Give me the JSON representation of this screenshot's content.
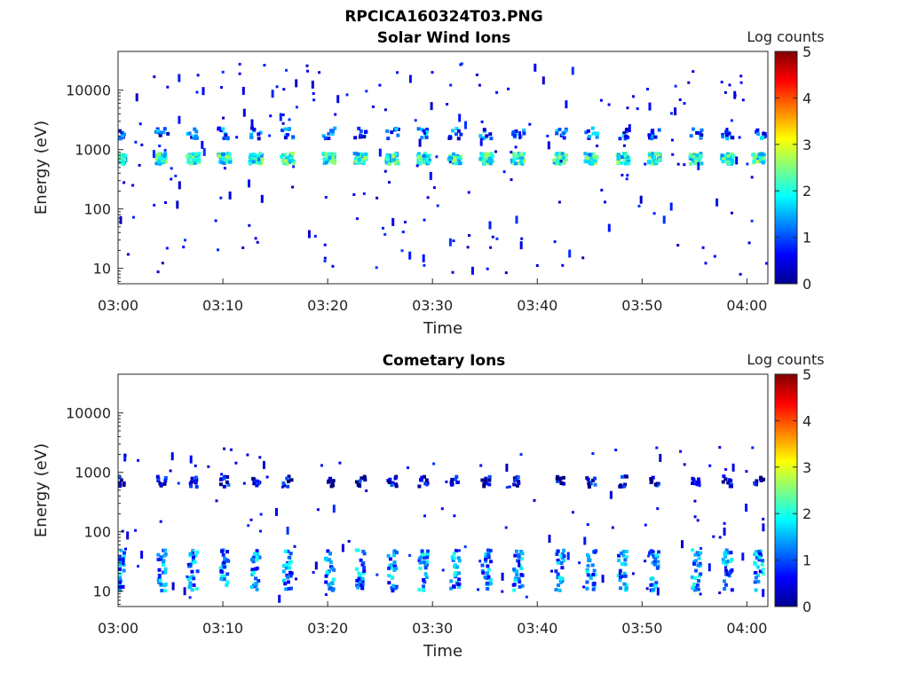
{
  "figure_title": "RPCICA160324T03.PNG",
  "colorbar": {
    "label": "Log counts",
    "ticks": [
      "0",
      "1",
      "2",
      "3",
      "4",
      "5"
    ],
    "range": [
      0,
      5
    ],
    "colormap": "jet"
  },
  "chart_data": [
    {
      "type": "heatmap",
      "title": "Solar Wind Ions",
      "xlabel": "Time",
      "ylabel": "Energy (eV)",
      "y_scale": "log",
      "ylim": [
        5.5,
        45000
      ],
      "xlim": [
        "03:00",
        "04:02"
      ],
      "x_ticks": [
        "03:00",
        "03:10",
        "03:20",
        "03:30",
        "03:40",
        "03:50",
        "04:00"
      ],
      "y_ticks": [
        "10",
        "100",
        "1000",
        "10000"
      ],
      "clusters": [
        {
          "times": [
            "03:00",
            "03:04",
            "03:07",
            "03:10",
            "03:13",
            "03:16",
            "03:20",
            "03:23",
            "03:26",
            "03:29",
            "03:32",
            "03:35",
            "03:38",
            "03:42",
            "03:45",
            "03:48",
            "03:51",
            "03:55",
            "03:58",
            "04:01"
          ],
          "energy_eV": 750,
          "log_counts": 2.0
        },
        {
          "times": [
            "03:00",
            "03:04",
            "03:07",
            "03:10",
            "03:13",
            "03:16",
            "03:20",
            "03:23",
            "03:26",
            "03:29",
            "03:32",
            "03:35",
            "03:38",
            "03:42",
            "03:45",
            "03:48",
            "03:51",
            "03:55",
            "03:58",
            "04:01"
          ],
          "energy_eV": 2000,
          "log_counts": 1.0
        }
      ],
      "background": {
        "energy_eV_range": [
          8,
          30000
        ],
        "log_counts": 0.3
      }
    },
    {
      "type": "heatmap",
      "title": "Cometary Ions",
      "xlabel": "Time",
      "ylabel": "Energy (eV)",
      "y_scale": "log",
      "ylim": [
        5.5,
        45000
      ],
      "xlim": [
        "03:00",
        "04:02"
      ],
      "x_ticks": [
        "03:00",
        "03:10",
        "03:20",
        "03:30",
        "03:40",
        "03:50",
        "04:00"
      ],
      "y_ticks": [
        "10",
        "100",
        "1000",
        "10000"
      ],
      "clusters": [
        {
          "times": [
            "03:00",
            "03:04",
            "03:07",
            "03:10",
            "03:13",
            "03:16",
            "03:20",
            "03:23",
            "03:26",
            "03:29",
            "03:32",
            "03:35",
            "03:38",
            "03:42",
            "03:45",
            "03:48",
            "03:51",
            "03:55",
            "03:58",
            "04:01"
          ],
          "energy_eV": 750,
          "log_counts": 0.4
        },
        {
          "times": [
            "03:00",
            "03:04",
            "03:07",
            "03:10",
            "03:13",
            "03:16",
            "03:20",
            "03:23",
            "03:26",
            "03:29",
            "03:32",
            "03:35",
            "03:38",
            "03:42",
            "03:45",
            "03:48",
            "03:51",
            "03:55",
            "03:58",
            "04:01"
          ],
          "energy_eV": 28,
          "log_counts": 1.3
        }
      ],
      "background": {
        "energy_eV_range": [
          8,
          3000
        ],
        "log_counts": 0.3
      }
    }
  ]
}
